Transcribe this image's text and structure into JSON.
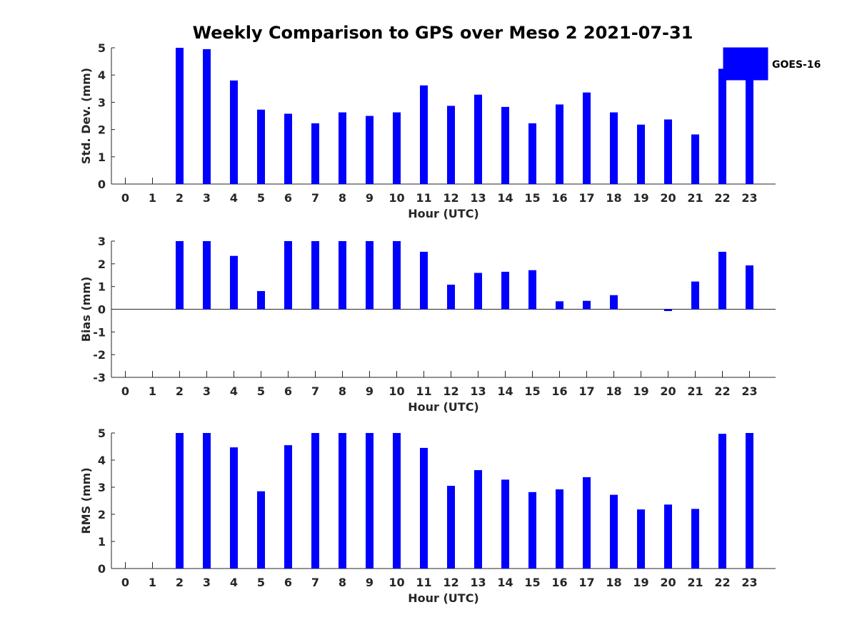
{
  "chart_data": {
    "title": "Weekly Comparison to GPS over Meso 2 2021-07-31",
    "legend": {
      "entries": [
        "GOES-16"
      ],
      "placement": "top-right",
      "color": "#0000ff"
    },
    "bar_color": "#0000ff",
    "panels": [
      {
        "type": "bar",
        "ylabel": "Std. Dev. (mm)",
        "xlabel": "Hour (UTC)",
        "ylim": [
          0,
          5
        ],
        "yticks": [
          "0",
          "1",
          "2",
          "3",
          "4",
          "5"
        ],
        "categories": [
          "0",
          "1",
          "2",
          "3",
          "4",
          "5",
          "6",
          "7",
          "8",
          "9",
          "10",
          "11",
          "12",
          "13",
          "14",
          "15",
          "16",
          "17",
          "18",
          "19",
          "20",
          "21",
          "22",
          "23"
        ],
        "series": [
          {
            "name": "GOES-16",
            "values": [
              null,
              null,
              5.0,
              4.95,
              3.8,
              2.73,
              2.58,
              2.23,
              2.63,
              2.5,
              2.63,
              3.62,
              2.87,
              3.28,
              2.83,
              2.23,
              2.92,
              3.36,
              2.63,
              2.18,
              2.37,
              1.82,
              4.23,
              4.8
            ]
          }
        ]
      },
      {
        "type": "bar",
        "ylabel": "Bias (mm)",
        "xlabel": "Hour (UTC)",
        "ylim": [
          -3,
          3
        ],
        "yticks": [
          "-3",
          "-2",
          "-1",
          "0",
          "1",
          "2",
          "3"
        ],
        "categories": [
          "0",
          "1",
          "2",
          "3",
          "4",
          "5",
          "6",
          "7",
          "8",
          "9",
          "10",
          "11",
          "12",
          "13",
          "14",
          "15",
          "16",
          "17",
          "18",
          "19",
          "20",
          "21",
          "22",
          "23"
        ],
        "series": [
          {
            "name": "GOES-16",
            "values": [
              null,
              null,
              3.0,
              3.0,
              2.35,
              0.8,
              3.0,
              3.0,
              3.0,
              3.0,
              3.0,
              2.53,
              1.08,
              1.6,
              1.65,
              1.72,
              0.35,
              0.37,
              0.62,
              0.0,
              -0.08,
              1.22,
              2.53,
              1.93
            ]
          }
        ]
      },
      {
        "type": "bar",
        "ylabel": "RMS (mm)",
        "xlabel": "Hour (UTC)",
        "ylim": [
          0,
          5
        ],
        "yticks": [
          "0",
          "1",
          "2",
          "3",
          "4",
          "5"
        ],
        "categories": [
          "0",
          "1",
          "2",
          "3",
          "4",
          "5",
          "6",
          "7",
          "8",
          "9",
          "10",
          "11",
          "12",
          "13",
          "14",
          "15",
          "16",
          "17",
          "18",
          "19",
          "20",
          "21",
          "22",
          "23"
        ],
        "series": [
          {
            "name": "GOES-16",
            "values": [
              null,
              null,
              5.0,
              5.0,
              4.47,
              2.85,
              4.55,
              5.0,
              5.0,
              5.0,
              5.0,
              4.45,
              3.05,
              3.63,
              3.28,
              2.82,
              2.92,
              3.37,
              2.72,
              2.18,
              2.36,
              2.2,
              4.97,
              5.0
            ]
          }
        ]
      }
    ]
  }
}
